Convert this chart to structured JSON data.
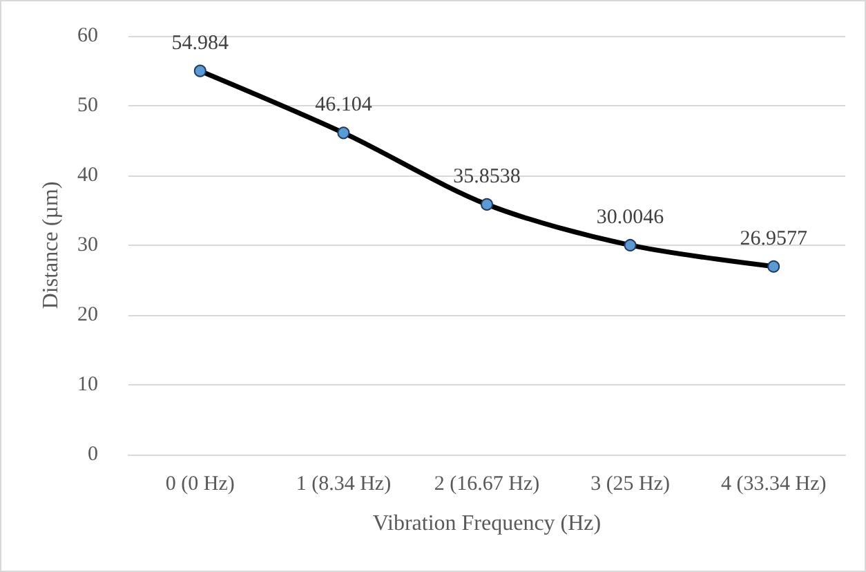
{
  "chart_data": {
    "type": "line",
    "xlabel": "Vibration Frequency (Hz)",
    "ylabel": "Distance (µm)",
    "categories": [
      "0 (0 Hz)",
      "1 (8.34 Hz)",
      "2 (16.67 Hz)",
      "3 (25 Hz)",
      "4 (33.34 Hz)"
    ],
    "series": [
      {
        "color": "#000000",
        "values": [
          54.984,
          46.104,
          35.8538,
          30.0046,
          26.9577
        ]
      }
    ],
    "ylim": [
      0,
      60
    ],
    "yticks": [
      0,
      10,
      20,
      30,
      40,
      50,
      60
    ],
    "grid": "y",
    "data_labels": true,
    "marker": "circle",
    "line_style": "solid"
  }
}
